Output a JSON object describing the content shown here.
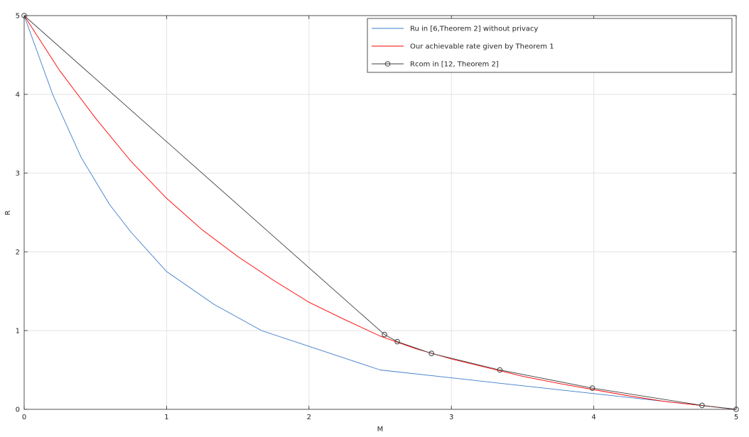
{
  "chart_data": {
    "type": "line",
    "xlabel": "M",
    "ylabel": "R",
    "xlim": [
      0,
      5
    ],
    "ylim": [
      0,
      5
    ],
    "xticks": [
      0,
      1,
      2,
      3,
      4,
      5
    ],
    "yticks": [
      0,
      1,
      2,
      3,
      4,
      5
    ],
    "xtick_labels": [
      "0",
      "1",
      "2",
      "3",
      "4",
      "5"
    ],
    "ytick_labels": [
      "0",
      "1",
      "2",
      "3",
      "4",
      "5"
    ],
    "grid": true,
    "legend_position": "top-right",
    "series": [
      {
        "name": "Ru in [6,Theorem 2] without privacy",
        "color": "#3e7cc8",
        "marker": "none",
        "points": [
          [
            0,
            5
          ],
          [
            0.2,
            4.0
          ],
          [
            0.4,
            3.2
          ],
          [
            0.6,
            2.6
          ],
          [
            0.75,
            2.25
          ],
          [
            1.0,
            1.75
          ],
          [
            1.333,
            1.333
          ],
          [
            1.667,
            1.0
          ],
          [
            2.0,
            0.8
          ],
          [
            2.5,
            0.5
          ],
          [
            3.0,
            0.4
          ],
          [
            3.333,
            0.333
          ],
          [
            4.0,
            0.2
          ],
          [
            4.75,
            0.05
          ],
          [
            5.0,
            0.0
          ]
        ]
      },
      {
        "name": "Our achievable rate given by Theorem 1",
        "color": "#ff0000",
        "marker": "none",
        "points": [
          [
            0,
            5.0
          ],
          [
            0.25,
            4.3
          ],
          [
            0.5,
            3.7
          ],
          [
            0.75,
            3.15
          ],
          [
            1.0,
            2.68
          ],
          [
            1.25,
            2.28
          ],
          [
            1.5,
            1.94
          ],
          [
            1.75,
            1.64
          ],
          [
            2.0,
            1.36
          ],
          [
            2.25,
            1.14
          ],
          [
            2.5,
            0.93
          ],
          [
            2.75,
            0.77
          ],
          [
            3.0,
            0.64
          ],
          [
            3.25,
            0.53
          ],
          [
            3.5,
            0.42
          ],
          [
            3.75,
            0.33
          ],
          [
            4.0,
            0.25
          ],
          [
            4.25,
            0.17
          ],
          [
            4.5,
            0.1
          ],
          [
            4.75,
            0.05
          ],
          [
            5.0,
            0.0
          ]
        ]
      },
      {
        "name": "Rcom in [12, Theorem 2]",
        "color": "#404040",
        "marker": "circle",
        "points": [
          [
            0,
            5.0
          ],
          [
            2.53,
            0.95
          ],
          [
            2.62,
            0.86
          ],
          [
            2.86,
            0.71
          ],
          [
            3.34,
            0.5
          ],
          [
            3.99,
            0.27
          ],
          [
            4.76,
            0.05
          ],
          [
            5.0,
            0.0
          ]
        ]
      }
    ]
  }
}
